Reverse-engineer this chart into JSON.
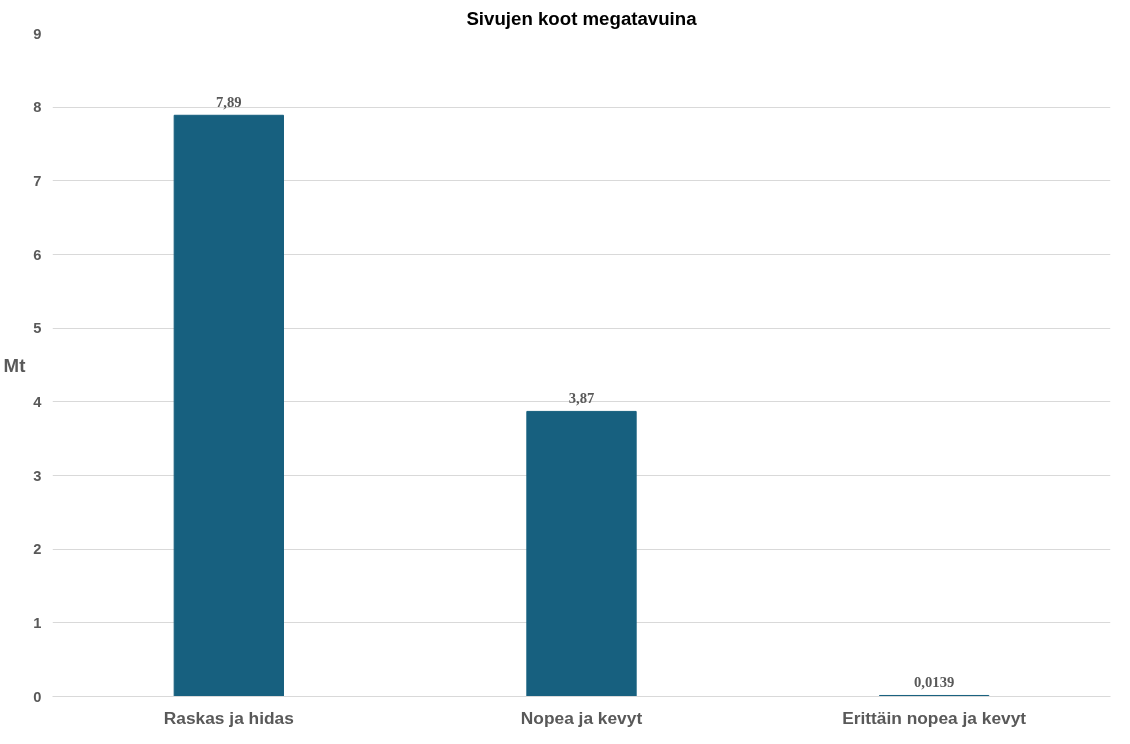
{
  "chart_data": {
    "type": "bar",
    "title": "Sivujen koot megatavuina",
    "ylabel": "Mt",
    "categories": [
      "Raskas ja hidas",
      "Nopea ja kevyt",
      "Erittäin nopea ja kevyt"
    ],
    "values": [
      7.89,
      3.87,
      0.0139
    ],
    "value_labels": [
      "7,89",
      "3,87",
      "0,0139"
    ],
    "color": "#17607f",
    "ylim": [
      0,
      9
    ],
    "yticks": [
      0,
      1,
      2,
      3,
      4,
      5,
      6,
      7,
      8,
      9
    ],
    "grid": "y"
  }
}
